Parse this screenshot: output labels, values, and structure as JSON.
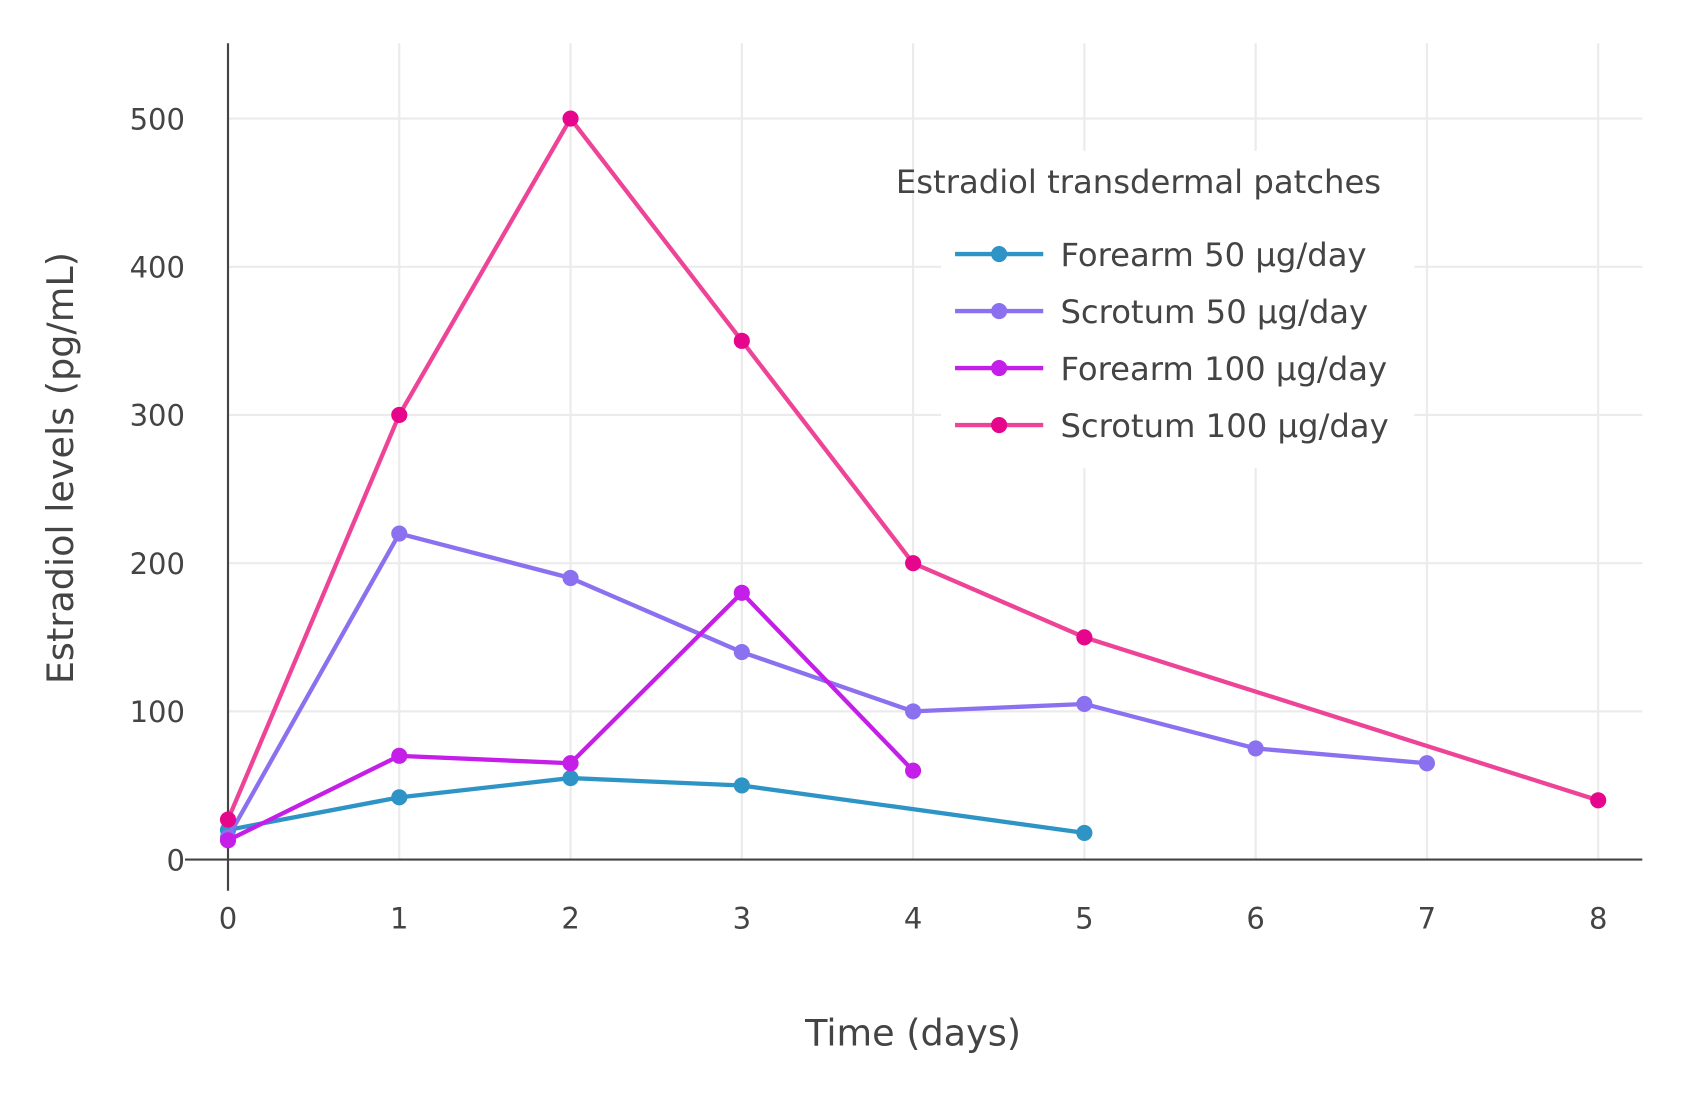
{
  "chart_data": {
    "type": "line",
    "title": "",
    "xlabel": "Time (days)",
    "ylabel": "Estradiol levels (pg/mL)",
    "xlim": [
      -0.25,
      8.25
    ],
    "ylim": [
      0,
      550
    ],
    "xticks": [
      0,
      1,
      2,
      3,
      4,
      5,
      6,
      7,
      8
    ],
    "yticks": [
      0,
      100,
      200,
      300,
      400,
      500
    ],
    "grid": true,
    "legend": {
      "title": "Estradiol transdermal patches",
      "placement": "top-right"
    },
    "series": [
      {
        "name": "Forearm 50 µg/day",
        "color": "#2e94c6",
        "marker_color": "#2e94c6",
        "x": [
          0,
          1,
          2,
          3,
          5
        ],
        "y": [
          20,
          42,
          55,
          50,
          18
        ]
      },
      {
        "name": "Scrotum 50 µg/day",
        "color": "#8b70f0",
        "marker_color": "#8b70f0",
        "x": [
          0,
          1,
          2,
          3,
          4,
          5,
          6,
          7
        ],
        "y": [
          15,
          220,
          190,
          140,
          100,
          105,
          75,
          65
        ]
      },
      {
        "name": "Forearm 100 µg/day",
        "color": "#c41ee8",
        "marker_color": "#c41ee8",
        "x": [
          0,
          1,
          2,
          3,
          4
        ],
        "y": [
          13,
          70,
          65,
          180,
          60
        ]
      },
      {
        "name": "Scrotum 100 µg/day",
        "color": "#ee4497",
        "marker_color": "#e6068c",
        "x": [
          0,
          1,
          2,
          3,
          4,
          5,
          8
        ],
        "y": [
          27,
          300,
          500,
          350,
          200,
          150,
          40
        ]
      }
    ]
  }
}
